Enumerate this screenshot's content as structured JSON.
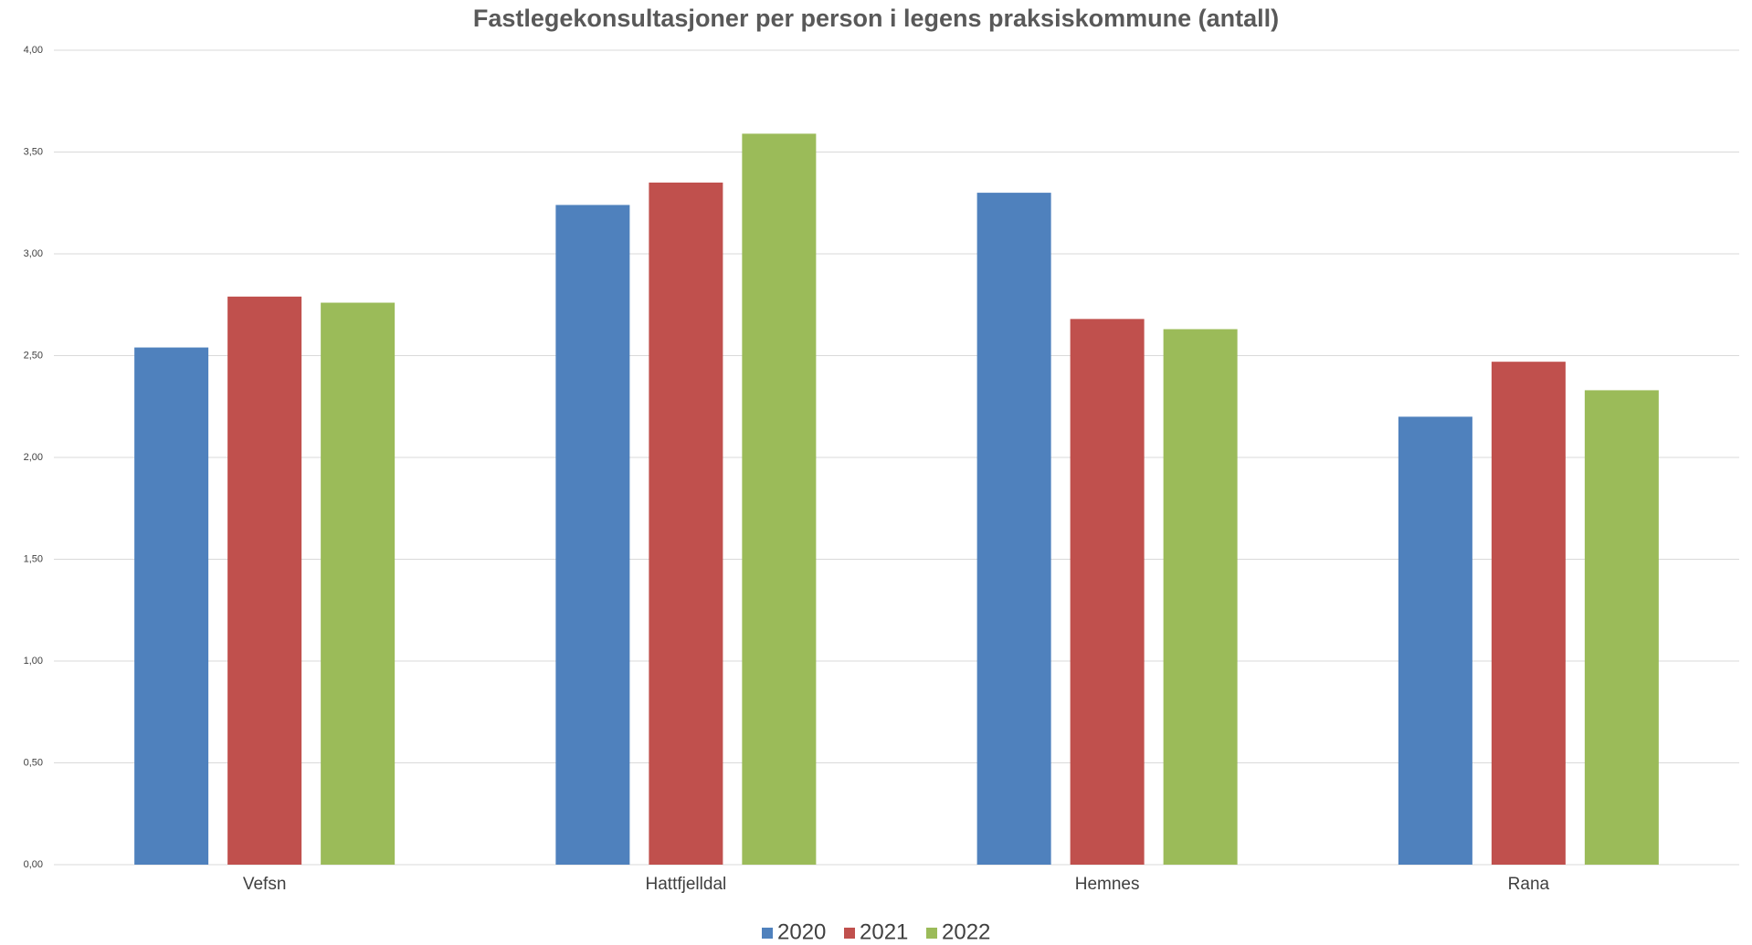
{
  "chart_data": {
    "type": "bar",
    "title": "Fastlegekonsultasjoner per person i legens praksiskommune  (antall)",
    "categories": [
      "Vefsn",
      "Hattfjelldal",
      "Hemnes",
      "Rana"
    ],
    "series": [
      {
        "name": "2020",
        "color": "#4f81bd",
        "values": [
          2.54,
          3.24,
          3.3,
          2.2
        ]
      },
      {
        "name": "2021",
        "color": "#c0504d",
        "values": [
          2.79,
          3.35,
          2.68,
          2.47
        ]
      },
      {
        "name": "2022",
        "color": "#9bbb59",
        "values": [
          2.76,
          3.59,
          2.63,
          2.33
        ]
      }
    ],
    "ylim": [
      0,
      4
    ],
    "yticks": [
      {
        "value": 0,
        "label": "0,00"
      },
      {
        "value": 0.5,
        "label": "0,50"
      },
      {
        "value": 1,
        "label": "1,00"
      },
      {
        "value": 1.5,
        "label": "1,50"
      },
      {
        "value": 2,
        "label": "2,00"
      },
      {
        "value": 2.5,
        "label": "2,50"
      },
      {
        "value": 3,
        "label": "3,00"
      },
      {
        "value": 3.5,
        "label": "3,50"
      },
      {
        "value": 4,
        "label": "4,00"
      }
    ],
    "grid": true,
    "legend": "bottom"
  }
}
